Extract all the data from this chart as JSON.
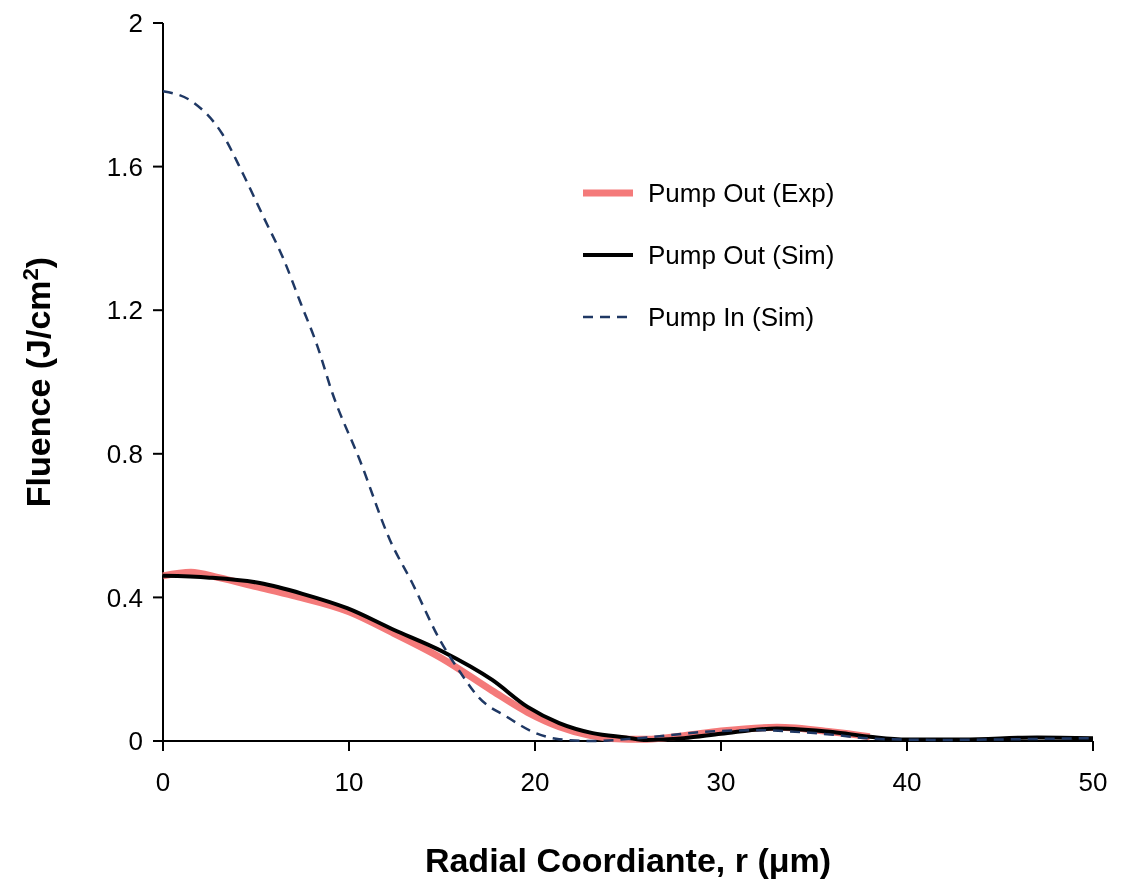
{
  "chart_data": {
    "type": "line",
    "xlabel": "Radial Coordiante, r (μm)",
    "ylabel": "Fluence (J/cm$^{2}$)",
    "xlim": [
      0,
      50
    ],
    "xticks": [
      0,
      10,
      20,
      30,
      40,
      50
    ],
    "ylim": [
      0,
      2
    ],
    "yticks": [
      0,
      0.4,
      0.8,
      1.2,
      1.6,
      2
    ],
    "grid": false,
    "legend": "top right",
    "series": [
      {
        "name": "Pump Out (Exp)",
        "color": "#f47a7a",
        "line_style": "solid",
        "x": [
          0,
          1.5,
          3,
          5,
          7,
          10,
          12.4,
          15,
          17.7,
          19.6,
          21.3,
          23,
          25,
          26,
          28,
          30,
          33,
          36,
          38
        ],
        "values": [
          0.46,
          0.47,
          0.455,
          0.43,
          0.405,
          0.36,
          0.3,
          0.23,
          0.14,
          0.08,
          0.04,
          0.015,
          0.005,
          0.005,
          0.015,
          0.028,
          0.038,
          0.025,
          0.012
        ]
      },
      {
        "name": "Pump Out (Sim)",
        "color": "#000000",
        "line_style": "solid",
        "x": [
          0,
          2.5,
          5.2,
          7.5,
          9.9,
          12.4,
          15,
          17.7,
          19.6,
          21.3,
          23.1,
          24.9,
          26,
          28,
          30,
          33,
          36,
          38,
          40,
          43,
          47,
          50
        ],
        "values": [
          0.46,
          0.455,
          0.44,
          0.41,
          0.37,
          0.31,
          0.25,
          0.17,
          0.095,
          0.05,
          0.022,
          0.01,
          0.003,
          0.008,
          0.02,
          0.035,
          0.025,
          0.012,
          0.004,
          0.004,
          0.01,
          0.008
        ]
      },
      {
        "name": "Pump In (Sim)",
        "color": "#1f3864",
        "line_style": "dashed",
        "x": [
          0,
          1.6,
          3.2,
          4.3,
          5.4,
          6.5,
          7.4,
          8.3,
          9.1,
          10.6,
          12.2,
          13.4,
          14.9,
          16,
          17,
          18.5,
          19.9,
          21.3,
          23,
          26,
          29,
          32,
          35,
          38.8,
          42,
          46,
          50
        ],
        "values": [
          1.81,
          1.78,
          1.69,
          1.58,
          1.46,
          1.34,
          1.22,
          1.1,
          0.97,
          0.78,
          0.56,
          0.44,
          0.28,
          0.19,
          0.12,
          0.067,
          0.025,
          0.005,
          0.0,
          0.01,
          0.025,
          0.03,
          0.022,
          0.005,
          0.003,
          0.005,
          0.008
        ]
      }
    ]
  }
}
